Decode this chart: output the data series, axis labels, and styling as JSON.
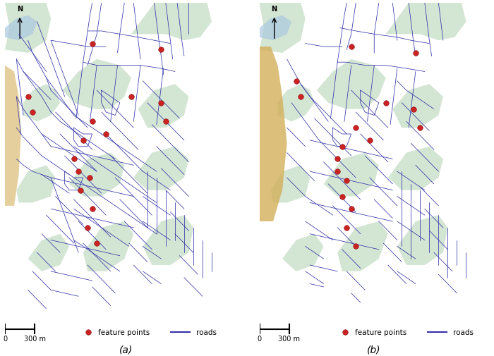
{
  "figure_width": 7.0,
  "figure_height": 5.06,
  "dpi": 100,
  "bg_color": "#ffffff",
  "map_bg_color": "#f2efe9",
  "map_green_color": "#c9dfc9",
  "map_green_dark": "#b8cfb8",
  "map_water_color": "#aac8e0",
  "map_sand_color": "#e8e0d0",
  "map_road_color": "#3333aa",
  "road_linewidth": 0.55,
  "feature_point_color": "#cc2222",
  "feature_point_edgecolor": "#881111",
  "feature_point_size": 30,
  "panel_a_label": "(a)",
  "panel_b_label": "(b)",
  "legend_fp_label": "feature points",
  "legend_road_label": "roads",
  "north_label": "N"
}
